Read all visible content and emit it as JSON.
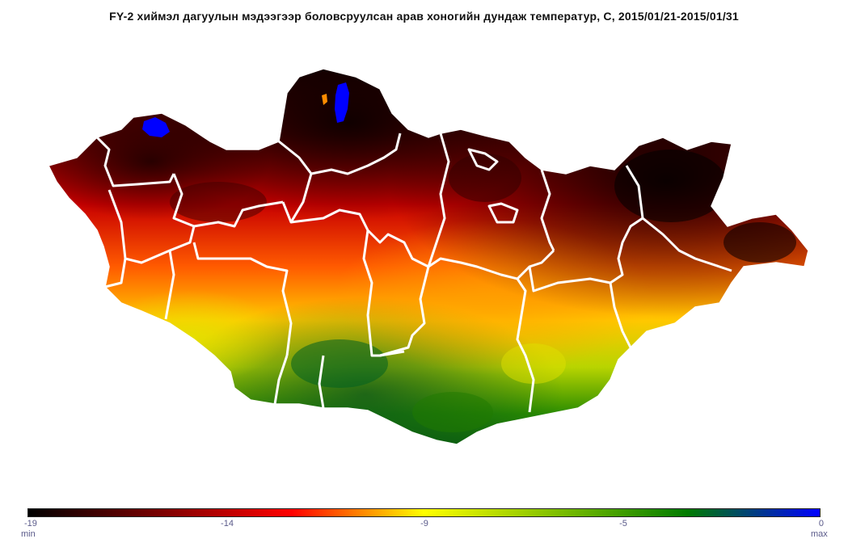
{
  "title": "FY-2 хиймэл дагуулын мэдээгээр боловсруулсан арав хоногийн  дундаж температур, С, 2015/01/21-2015/01/31",
  "colorbar": {
    "min_label": "min",
    "max_label": "max",
    "ticks": [
      "-19",
      "-14",
      "-9",
      "-5",
      "0"
    ],
    "tick_values": [
      -19,
      -14,
      -9,
      -5,
      0
    ],
    "colors": [
      "#000000",
      "#7a0000",
      "#ff0000",
      "#ffff00",
      "#7fbf00",
      "#007a00",
      "#0000ff"
    ]
  },
  "map": {
    "region": "Mongolia",
    "boundary_color": "#ffffff",
    "lake_color": "#0000ff"
  }
}
